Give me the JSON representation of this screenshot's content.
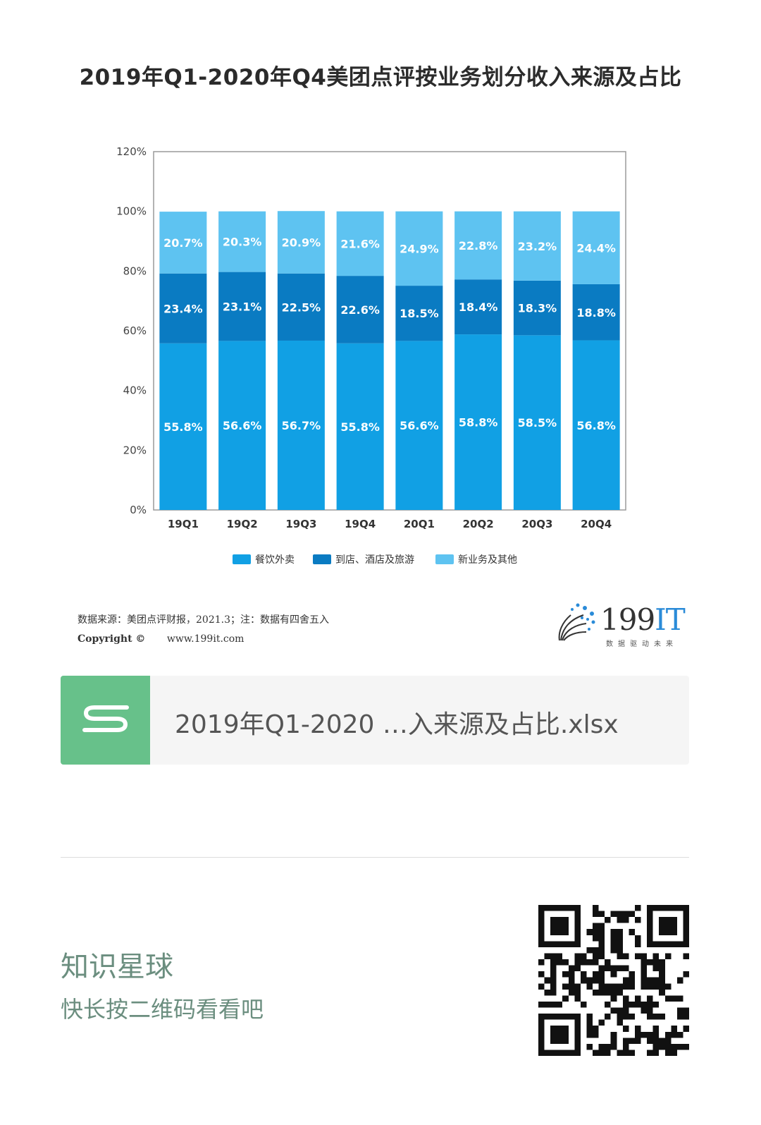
{
  "chart_data": {
    "type": "bar",
    "stacked": true,
    "title": "2019年Q1-2020年Q4美团点评按业务划分收入来源及占比",
    "categories": [
      "19Q1",
      "19Q2",
      "19Q3",
      "19Q4",
      "20Q1",
      "20Q2",
      "20Q3",
      "20Q4"
    ],
    "series": [
      {
        "name": "餐饮外卖",
        "color": "#11a0e4",
        "values": [
          55.8,
          56.6,
          56.7,
          55.8,
          56.6,
          58.8,
          58.5,
          56.8
        ]
      },
      {
        "name": "到店、酒店及旅游",
        "color": "#0a7bc2",
        "values": [
          23.4,
          23.1,
          22.5,
          22.6,
          18.5,
          18.4,
          18.3,
          18.8
        ]
      },
      {
        "name": "新业务及其他",
        "color": "#5ec3f1",
        "values": [
          20.7,
          20.3,
          20.9,
          21.6,
          24.9,
          22.8,
          23.2,
          24.4
        ]
      }
    ],
    "value_labels": [
      [
        "55.8%",
        "56.6%",
        "56.7%",
        "55.8%",
        "56.6%",
        "58.8%",
        "58.5%",
        "56.8%"
      ],
      [
        "23.4%",
        "23.1%",
        "22.5%",
        "22.6%",
        "18.5%",
        "18.4%",
        "18.3%",
        "18.8%"
      ],
      [
        "20.7%",
        "20.3%",
        "20.9%",
        "21.6%",
        "24.9%",
        "22.8%",
        "23.2%",
        "24.4%"
      ]
    ],
    "yticks": [
      0,
      20,
      40,
      60,
      80,
      100,
      120
    ],
    "ytick_labels": [
      "0%",
      "20%",
      "40%",
      "60%",
      "80%",
      "100%",
      "120%"
    ],
    "ylim": [
      0,
      120
    ],
    "xlabel": "",
    "ylabel": "",
    "grid": false,
    "legend_position": "bottom"
  },
  "source": {
    "text": "数据来源：美团点评财报，2021.3；注：数据有四舍五入",
    "copyright": "Copyright ©",
    "url": "www.199it.com"
  },
  "logo": {
    "main": "199",
    "accent": "IT",
    "subtitle": "数据驱动未来"
  },
  "file": {
    "name": "2019年Q1-2020 …入来源及占比.xlsx",
    "icon": "spreadsheet-s-icon"
  },
  "footer": {
    "title": "知识星球",
    "subtitle": "快长按二维码看看吧"
  },
  "qr": {
    "icon": "qr-code-icon"
  }
}
